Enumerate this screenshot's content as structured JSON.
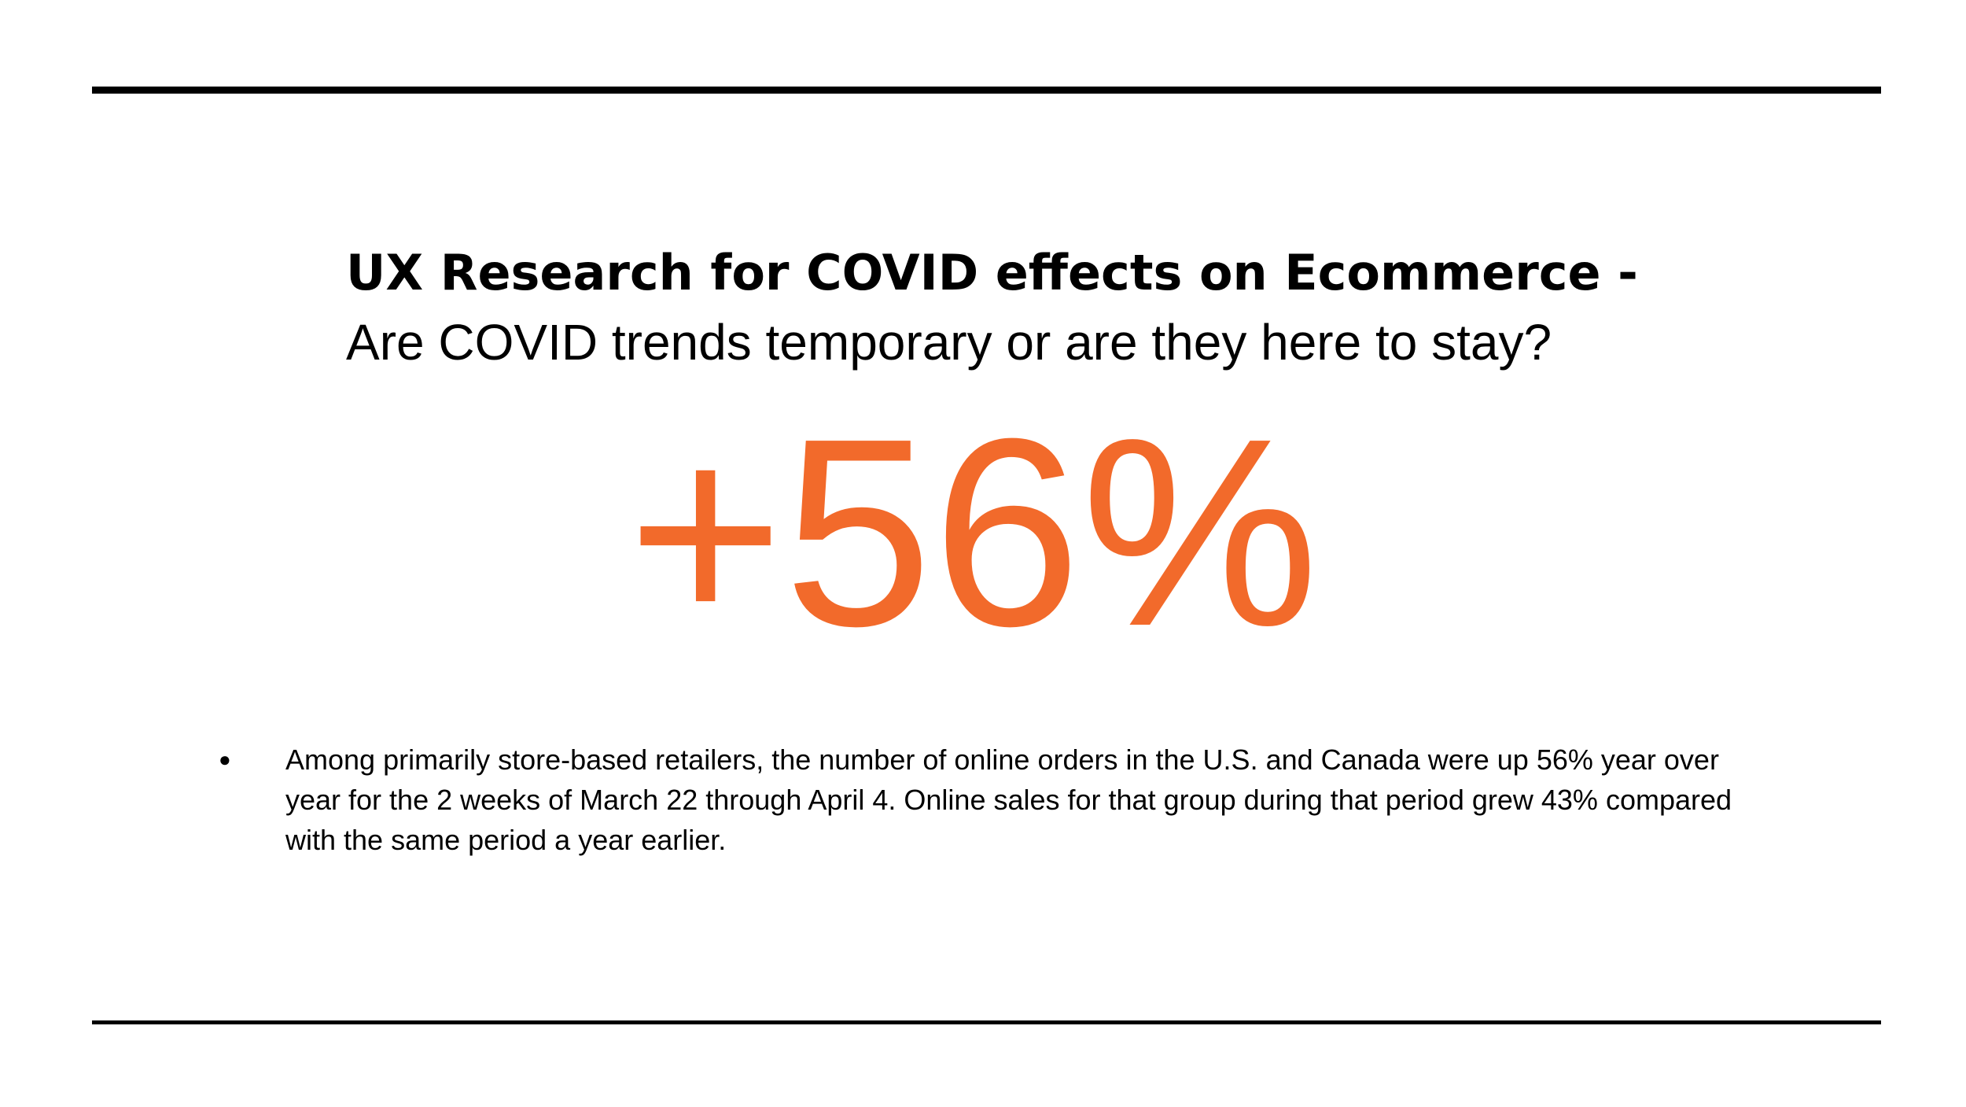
{
  "slide": {
    "title": "UX Research for COVID effects on Ecommerce -",
    "subtitle": "Are COVID trends temporary or are they here to stay?",
    "stat": "+56%",
    "bullets": [
      "Among primarily store-based retailers,  the number of online orders in the U.S. and Canada were up 56% year over year for the 2 weeks of March 22 through April 4. Online sales for that group during that period grew 43% compared with the same period a year earlier."
    ]
  }
}
